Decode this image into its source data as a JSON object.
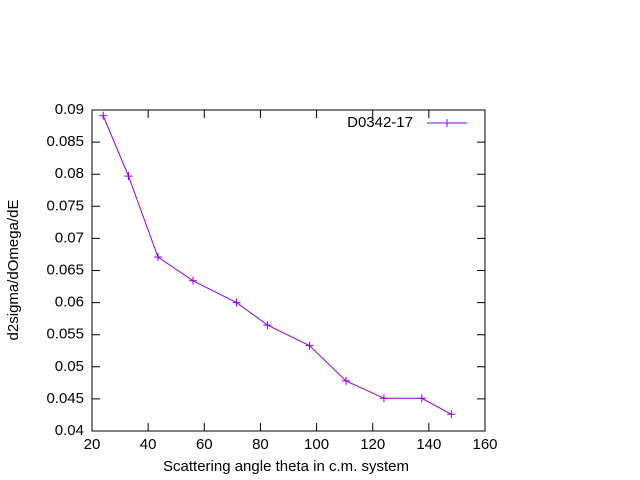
{
  "chart_data": {
    "type": "line",
    "xlabel": "Scattering angle theta in c.m. system",
    "ylabel": "d2sigma/dOmega/dE",
    "xlim": [
      20,
      160
    ],
    "xticks": [
      20,
      40,
      60,
      80,
      100,
      120,
      140,
      160
    ],
    "ylim": [
      0.04,
      0.09
    ],
    "yticks": [
      0.04,
      0.045,
      0.05,
      0.055,
      0.06,
      0.065,
      0.07,
      0.075,
      0.08,
      0.085,
      0.09
    ],
    "legend": "top-right",
    "series": [
      {
        "name": "D0342-17",
        "color": "#9400d3",
        "x": [
          24,
          33,
          43.5,
          56,
          71.5,
          82.5,
          97.5,
          110.5,
          124,
          137.5,
          148
        ],
        "values": [
          0.0891,
          0.0797,
          0.0671,
          0.0634,
          0.06,
          0.0565,
          0.0533,
          0.0478,
          0.0451,
          0.0451,
          0.0426
        ]
      }
    ]
  }
}
